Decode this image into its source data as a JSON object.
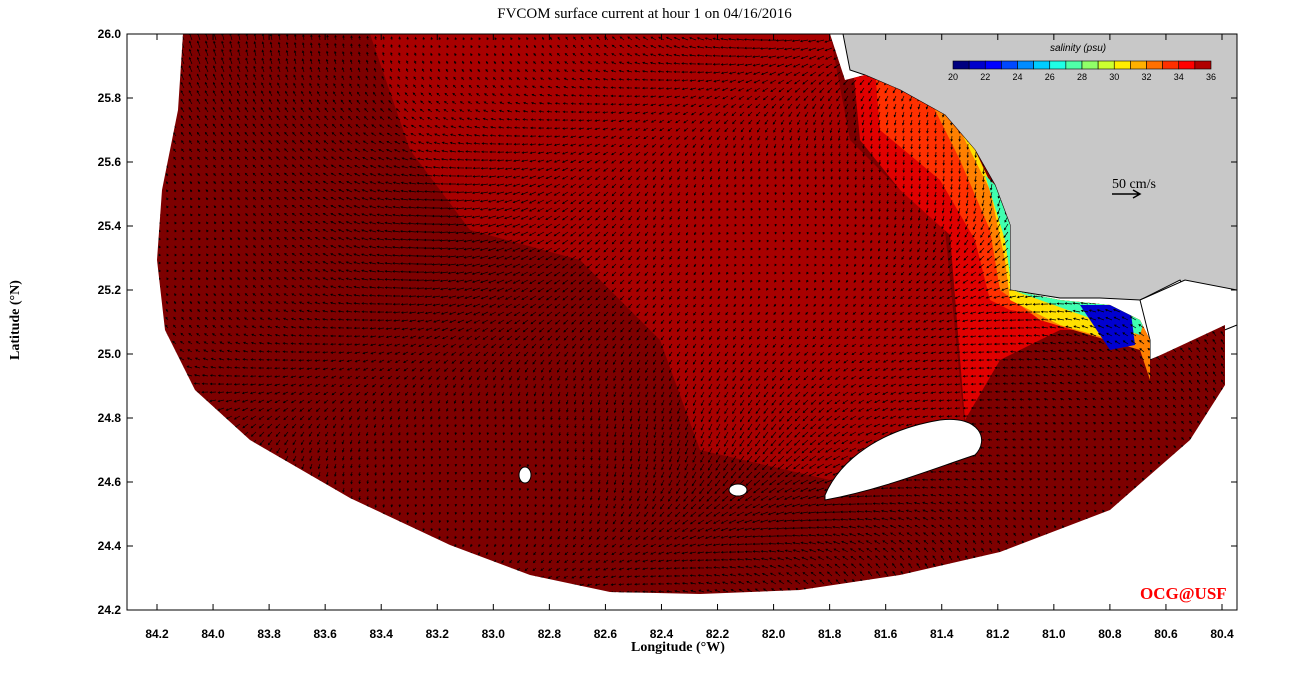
{
  "title": "FVCOM surface current at hour 1 on 04/16/2016",
  "x_axis": {
    "label": "Longitude (°W)",
    "ticks": [
      "84.2",
      "84.0",
      "83.8",
      "83.6",
      "83.4",
      "83.2",
      "83.0",
      "82.8",
      "82.6",
      "82.4",
      "82.2",
      "82.0",
      "81.8",
      "81.6",
      "81.4",
      "81.2",
      "81.0",
      "80.8",
      "80.6",
      "80.4"
    ],
    "range": [
      84.2,
      80.4
    ]
  },
  "y_axis": {
    "label": "Latitude (°N)",
    "ticks": [
      "26.0",
      "25.8",
      "25.6",
      "25.4",
      "25.2",
      "25.0",
      "24.8",
      "24.6",
      "24.4",
      "24.2"
    ],
    "range": [
      24.2,
      26.0
    ]
  },
  "colorbar": {
    "title": "salinity (psu)",
    "labels": [
      "20",
      "22",
      "24",
      "26",
      "28",
      "30",
      "32",
      "34",
      "36"
    ],
    "range": [
      20,
      36
    ],
    "colors": [
      "#00007f",
      "#0000cc",
      "#0000ff",
      "#0048ff",
      "#008cff",
      "#00ccff",
      "#1effe6",
      "#50ffa8",
      "#90ff68",
      "#ccff30",
      "#ffee00",
      "#ffb000",
      "#ff7000",
      "#ff3000",
      "#ff0000",
      "#b00000"
    ]
  },
  "scale_arrow": {
    "label": "50 cm/s"
  },
  "credit": "OCG@USF",
  "colors": {
    "ocean_dark": "#7d0000",
    "ocean_mid": "#a80000",
    "land": "#c8c8c8",
    "credit": "#ff0000"
  }
}
